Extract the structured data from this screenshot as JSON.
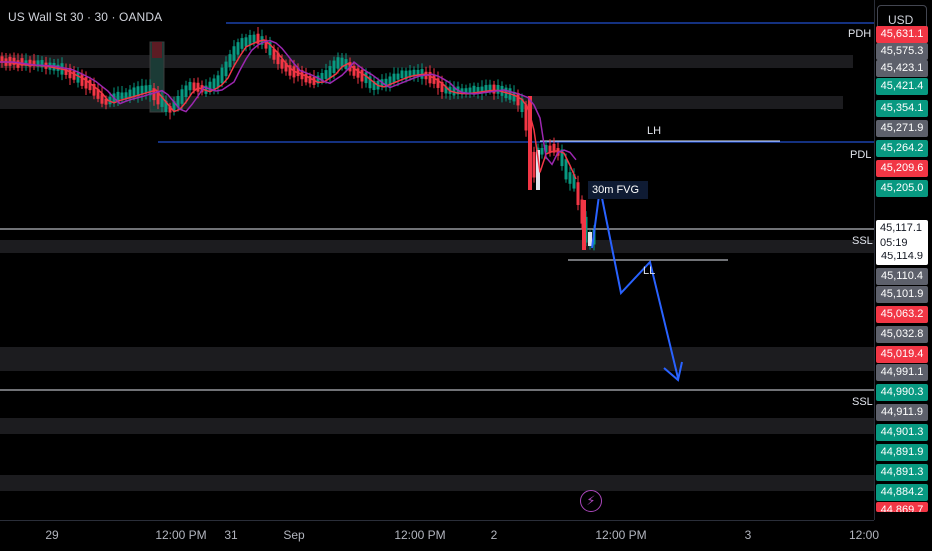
{
  "title": "US Wall St 30 · 30 · OANDA",
  "currency": "USD",
  "levels": {
    "pdh": "PDH",
    "pdl": "PDL",
    "lh": "LH",
    "ssl_upper": "SSL",
    "ssl_lower": "SSL",
    "ll": "LL",
    "fvg": "30m FVG"
  },
  "price_scale": [
    {
      "label": "45,631.1",
      "color": "red"
    },
    {
      "label": "45,575.3",
      "color": "gray"
    },
    {
      "label": "45,423.1",
      "color": "gray"
    },
    {
      "label": "45,421.4",
      "color": "green"
    },
    {
      "label": "45,354.1",
      "color": "green"
    },
    {
      "label": "45,271.9",
      "color": "gray"
    },
    {
      "label": "45,264.2",
      "color": "green"
    },
    {
      "label": "45,209.6",
      "color": "red"
    },
    {
      "label": "45,205.0",
      "color": "green"
    },
    {
      "label": "45,114.9",
      "color": "white"
    },
    {
      "label": "45,110.4",
      "color": "gray"
    },
    {
      "label": "45,101.9",
      "color": "gray"
    },
    {
      "label": "45,063.2",
      "color": "red"
    },
    {
      "label": "45,032.8",
      "color": "gray"
    },
    {
      "label": "45,019.4",
      "color": "red"
    },
    {
      "label": "44,991.1",
      "color": "gray"
    },
    {
      "label": "44,990.3",
      "color": "green"
    },
    {
      "label": "44,911.9",
      "color": "gray"
    },
    {
      "label": "44,901.3",
      "color": "green"
    },
    {
      "label": "44,891.9",
      "color": "green"
    },
    {
      "label": "44,891.3",
      "color": "green"
    },
    {
      "label": "44,884.2",
      "color": "green"
    },
    {
      "label": "44,869.7",
      "color": "red"
    }
  ],
  "current_price": {
    "price": "45,117.1",
    "countdown": "05:19"
  },
  "time_axis": [
    "29",
    "12:00 PM",
    "31",
    "Sep",
    "12:00 PM",
    "2",
    "12:00 PM",
    "3",
    "12:00"
  ],
  "colors": {
    "up": "#089981",
    "down": "#f23645",
    "line_blue": "#2962ff",
    "ema_red": "#f23645",
    "ema_purple": "#9c27b0"
  }
}
